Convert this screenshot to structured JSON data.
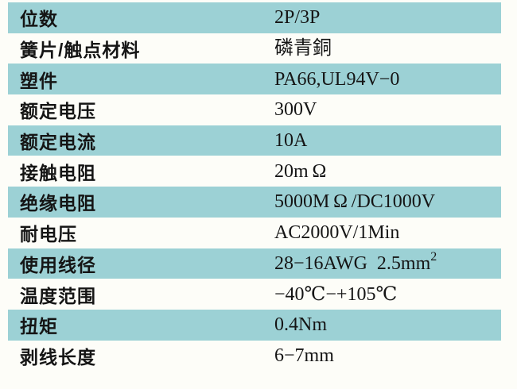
{
  "table": {
    "description": "connector specification table",
    "colors": {
      "row_shaded": "#9cd1d5",
      "background": "#fdfdf8",
      "text": "#151515"
    },
    "rows": [
      {
        "label": "位数",
        "value": "2P/3P"
      },
      {
        "label": "簧片/触点材料",
        "value": "磷青銅"
      },
      {
        "label": "塑件",
        "value": "PA66,UL94V−0"
      },
      {
        "label": "额定电压",
        "value": "300V"
      },
      {
        "label": "额定电流",
        "value": "10A"
      },
      {
        "label": "接触电阻",
        "value": "20m Ω"
      },
      {
        "label": "绝缘电阻",
        "value": "5000M Ω /DC1000V"
      },
      {
        "label": "耐电压",
        "value": "AC2000V/1Min"
      },
      {
        "label": "使用线径",
        "value": "28−16AWG  2.5mm",
        "value_sup": "2"
      },
      {
        "label": "温度范围",
        "value": "−40℃−+105℃"
      },
      {
        "label": "扭矩",
        "value": "0.4Nm"
      },
      {
        "label": "剥线长度",
        "value": "6−7mm"
      }
    ]
  }
}
